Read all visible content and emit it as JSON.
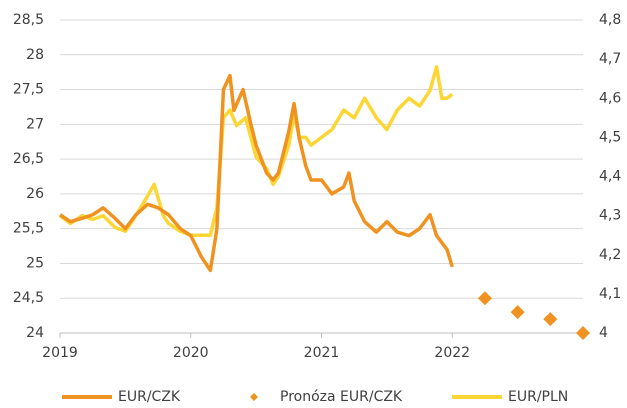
{
  "chart_data": {
    "type": "line",
    "x_series_note_free": null,
    "xlim": [
      2019,
      2023
    ],
    "xticks": [
      2019,
      2020,
      2021,
      2022
    ],
    "ylim": [
      24,
      28.5
    ],
    "yticks": [
      24,
      {
        "value": 24.5,
        "label": "24,5"
      },
      25,
      {
        "value": 25.5,
        "label": "25,5"
      },
      26,
      {
        "value": 26.5,
        "label": "26,5"
      },
      27,
      {
        "value": 27.5,
        "label": "27,5"
      },
      28,
      {
        "value": 28.5,
        "label": "28,5"
      }
    ],
    "y2lim": [
      4,
      4.8
    ],
    "y2ticks": [
      4,
      {
        "value": 4.1,
        "label": "4,1"
      },
      {
        "value": 4.2,
        "label": "4,2"
      },
      {
        "value": 4.3,
        "label": "4,3"
      },
      {
        "value": 4.4,
        "label": "4,4"
      },
      {
        "value": 4.5,
        "label": "4,5"
      },
      {
        "value": 4.6,
        "label": "4,6"
      },
      {
        "value": 4.7,
        "label": "4,7"
      },
      {
        "value": 4.8,
        "label": "4,8"
      }
    ],
    "grid": true,
    "legend": "bottom",
    "series": [
      {
        "name": "EUR/CZK",
        "color": "#f0921f",
        "style": "line",
        "x": [
          2019.0,
          2019.08,
          2019.17,
          2019.25,
          2019.33,
          2019.42,
          2019.5,
          2019.58,
          2019.67,
          2019.75,
          2019.83,
          2019.92,
          2020.0,
          2020.08,
          2020.15,
          2020.2,
          2020.25,
          2020.3,
          2020.33,
          2020.4,
          2020.46,
          2020.5,
          2020.58,
          2020.63,
          2020.67,
          2020.75,
          2020.79,
          2020.83,
          2020.88,
          2020.92,
          2021.0,
          2021.08,
          2021.17,
          2021.21,
          2021.25,
          2021.33,
          2021.42,
          2021.5,
          2021.58,
          2021.67,
          2021.75,
          2021.83,
          2021.88,
          2021.92,
          2021.96,
          2022.0
        ],
        "values": [
          25.7,
          25.6,
          25.65,
          25.7,
          25.8,
          25.65,
          25.5,
          25.7,
          25.85,
          25.8,
          25.7,
          25.5,
          25.4,
          25.1,
          24.9,
          25.5,
          27.5,
          27.7,
          27.2,
          27.5,
          27.0,
          26.7,
          26.3,
          26.2,
          26.3,
          26.9,
          27.3,
          26.8,
          26.4,
          26.2,
          26.2,
          26.0,
          26.1,
          26.3,
          25.9,
          25.6,
          25.45,
          25.6,
          25.45,
          25.4,
          25.5,
          25.7,
          25.4,
          25.3,
          25.2,
          24.95
        ]
      },
      {
        "name": "Pronóza EUR/CZK",
        "color": "#f0921f",
        "style": "marker",
        "x": [
          2022.25,
          2022.5,
          2022.75,
          2023.0
        ],
        "values": [
          24.5,
          24.3,
          24.2,
          24.0
        ]
      },
      {
        "name": "EUR/PLN",
        "color": "#fcd634",
        "style": "line",
        "axis": "y2",
        "x": [
          2019.0,
          2019.08,
          2019.17,
          2019.25,
          2019.33,
          2019.42,
          2019.5,
          2019.58,
          2019.67,
          2019.72,
          2019.79,
          2019.83,
          2019.92,
          2020.0,
          2020.08,
          2020.15,
          2020.2,
          2020.25,
          2020.3,
          2020.35,
          2020.42,
          2020.46,
          2020.5,
          2020.58,
          2020.63,
          2020.67,
          2020.75,
          2020.79,
          2020.83,
          2020.88,
          2020.92,
          2021.0,
          2021.08,
          2021.17,
          2021.25,
          2021.33,
          2021.42,
          2021.5,
          2021.58,
          2021.67,
          2021.75,
          2021.83,
          2021.88,
          2021.92,
          2021.96,
          2022.0
        ],
        "values": [
          4.3,
          4.28,
          4.3,
          4.29,
          4.3,
          4.27,
          4.26,
          4.3,
          4.35,
          4.38,
          4.3,
          4.28,
          4.26,
          4.25,
          4.25,
          4.25,
          4.32,
          4.55,
          4.57,
          4.53,
          4.55,
          4.5,
          4.45,
          4.42,
          4.38,
          4.4,
          4.48,
          4.56,
          4.5,
          4.5,
          4.48,
          4.5,
          4.52,
          4.57,
          4.55,
          4.6,
          4.55,
          4.52,
          4.57,
          4.6,
          4.58,
          4.62,
          4.68,
          4.6,
          4.6,
          4.61
        ]
      }
    ]
  }
}
